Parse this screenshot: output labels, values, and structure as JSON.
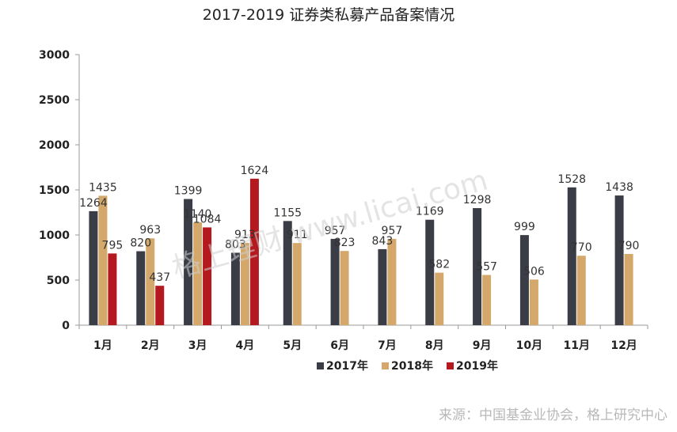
{
  "chart_data": {
    "type": "bar",
    "title": "2017-2019 证券类私募产品备案情况",
    "categories": [
      "1月",
      "2月",
      "3月",
      "4月",
      "5月",
      "6月",
      "7月",
      "8月",
      "9月",
      "10月",
      "11月",
      "12月"
    ],
    "series": [
      {
        "name": "2017年",
        "color": "#3a3d46",
        "values": [
          1264,
          820,
          1399,
          803,
          1155,
          957,
          843,
          1169,
          1298,
          999,
          1528,
          1438
        ]
      },
      {
        "name": "2018年",
        "color": "#d4a86a",
        "values": [
          1435,
          963,
          1140,
          913,
          911,
          823,
          957,
          582,
          557,
          506,
          770,
          790
        ]
      },
      {
        "name": "2019年",
        "color": "#b3191f",
        "values": [
          795,
          437,
          1084,
          1624,
          null,
          null,
          null,
          null,
          null,
          null,
          null,
          null
        ]
      }
    ],
    "ylim": [
      0,
      3000
    ],
    "yticks": [
      0,
      500,
      1000,
      1500,
      2000,
      2500,
      3000
    ],
    "legend_position": "bottom",
    "grid": false
  },
  "watermark_text": "格上理财 www.licai.com",
  "source_text": "来源：中国基金业协会，格上研究中心"
}
